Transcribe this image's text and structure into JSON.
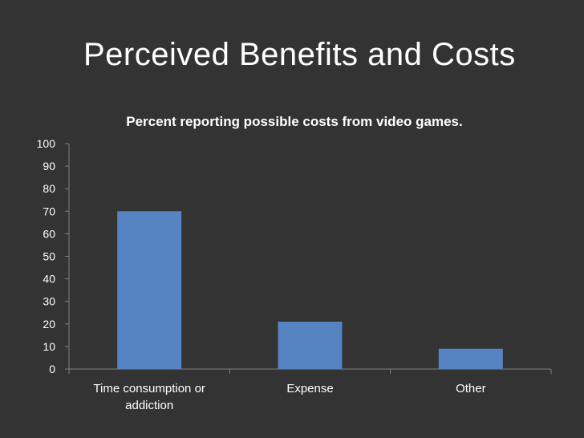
{
  "slide": {
    "title": "Perceived Benefits and Costs"
  },
  "chart_data": {
    "type": "bar",
    "title": "Percent reporting possible costs from video games.",
    "categories": [
      "Time consumption or addiction",
      "Expense",
      "Other"
    ],
    "category_label_lines": [
      [
        "Time consumption or",
        "addiction"
      ],
      [
        "Expense"
      ],
      [
        "Other"
      ]
    ],
    "values": [
      70,
      21,
      9
    ],
    "ylim": [
      0,
      100
    ],
    "yticks": [
      0,
      10,
      20,
      30,
      40,
      50,
      60,
      70,
      80,
      90,
      100
    ],
    "xlabel": "",
    "ylabel": "",
    "grid": false,
    "legend": "none",
    "bar_color": "#5684C3",
    "axis_color": "#7f7f7f"
  }
}
